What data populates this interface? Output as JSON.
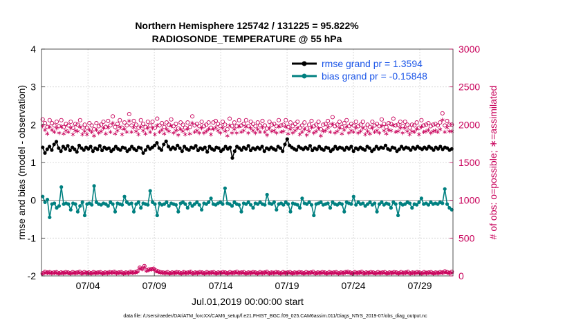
{
  "chart_data": {
    "type": "line",
    "title_line1": "Northern Hemisphere 125742 / 131225 = 95.822%",
    "title_line2": "RADIOSONDE_TEMPERATURE @ 55 hPa",
    "xlabel": "Jul.01,2019 00:00:00 start",
    "ylabel": "rmse and bias (model - observation)",
    "ylabel_right": "# of obs: o=possible; ∗=assimilated",
    "footnote": "data file: /Users/raeder/DAI/ATM_forcXX/CAM6_setup/f.e21.FHIST_BGC.f09_025.CAM6assim.011/Diags_NTrS_2019-07/obs_diag_output.nc",
    "x_range": [
      0,
      31
    ],
    "ylim": [
      -2,
      4
    ],
    "ylim_right": [
      0,
      3000
    ],
    "x_ticks": [
      {
        "value": 3.5,
        "label": "07/04"
      },
      {
        "value": 8.5,
        "label": "07/09"
      },
      {
        "value": 13.5,
        "label": "07/14"
      },
      {
        "value": 18.5,
        "label": "07/19"
      },
      {
        "value": 23.5,
        "label": "07/24"
      },
      {
        "value": 28.5,
        "label": "07/29"
      }
    ],
    "y_ticks": [
      "-2",
      "-1",
      "0",
      "1",
      "2",
      "3",
      "4"
    ],
    "y_ticks_right": [
      "0",
      "500",
      "1000",
      "1500",
      "2000",
      "2500",
      "3000"
    ],
    "legend": [
      {
        "label": "rmse grand pr = 1.3594",
        "color": "#000000"
      },
      {
        "label": "bias grand pr = -0.15848",
        "color": "#008080"
      }
    ],
    "series": [
      {
        "name": "rmse",
        "axis": "left",
        "color": "#000000",
        "values": [
          1.4,
          1.25,
          1.35,
          1.42,
          1.33,
          1.48,
          1.55,
          1.38,
          1.3,
          1.42,
          1.36,
          1.44,
          1.32,
          1.4,
          1.35,
          1.28,
          1.45,
          1.38,
          1.33,
          1.4,
          1.36,
          1.42,
          1.3,
          1.38,
          1.35,
          1.44,
          1.32,
          1.4,
          1.36,
          1.38,
          1.3,
          1.35,
          1.42,
          1.36,
          1.33,
          1.4,
          1.38,
          1.3,
          1.35,
          1.42,
          1.36,
          1.32,
          1.4,
          1.38,
          1.25,
          1.33,
          1.42,
          1.36,
          1.4,
          1.45,
          1.52,
          1.38,
          1.33,
          1.48,
          1.56,
          1.42,
          1.35,
          1.4,
          1.36,
          1.45,
          1.38,
          1.3,
          1.42,
          1.36,
          1.33,
          1.4,
          1.38,
          1.44,
          1.32,
          1.38,
          1.35,
          1.4,
          1.28,
          1.42,
          1.36,
          1.33,
          1.4,
          1.38,
          1.3,
          1.35,
          1.42,
          1.36,
          1.4,
          1.12,
          1.3,
          1.42,
          1.38,
          1.33,
          1.4,
          1.36,
          1.44,
          1.32,
          1.38,
          1.35,
          1.4,
          1.36,
          1.42,
          1.3,
          1.38,
          1.35,
          1.4,
          1.36,
          1.33,
          1.42,
          1.38,
          1.3,
          1.48,
          1.62,
          1.45,
          1.4,
          1.36,
          1.33,
          1.42,
          1.38,
          1.35,
          1.4,
          1.36,
          1.44,
          1.32,
          1.38,
          1.35,
          1.42,
          1.36,
          1.33,
          1.4,
          1.38,
          1.3,
          1.35,
          1.42,
          1.36,
          1.4,
          1.38,
          1.33,
          1.4,
          1.36,
          1.42,
          1.3,
          1.38,
          1.35,
          1.4,
          1.36,
          1.33,
          1.42,
          1.38,
          1.3,
          1.35,
          1.42,
          1.36,
          1.4,
          1.38,
          1.45,
          1.36,
          1.33,
          1.4,
          1.38,
          1.3,
          1.35,
          1.42,
          1.36,
          1.4,
          1.38,
          1.33,
          1.4,
          1.36,
          1.42,
          1.38,
          1.35,
          1.4,
          1.36,
          1.42,
          1.38,
          1.33,
          1.4,
          1.36,
          1.42,
          1.35,
          1.4,
          1.38,
          1.33,
          1.36
        ]
      },
      {
        "name": "bias",
        "axis": "left",
        "color": "#008080",
        "values": [
          0.1,
          -0.05,
          0.02,
          -0.45,
          -0.1,
          -0.08,
          -0.2,
          -0.15,
          0.35,
          -0.1,
          -0.08,
          -0.1,
          -0.25,
          -0.08,
          -0.1,
          -0.3,
          -0.15,
          -0.05,
          -0.4,
          -0.1,
          -0.08,
          -0.12,
          0.38,
          -0.05,
          -0.1,
          -0.12,
          -0.08,
          -0.1,
          -0.15,
          -0.05,
          -0.1,
          -0.3,
          -0.08,
          -0.1,
          -0.12,
          0.1,
          -0.05,
          -0.1,
          -0.08,
          -0.3,
          -0.1,
          -0.05,
          -0.2,
          -0.08,
          -0.1,
          -0.12,
          0.25,
          -0.05,
          -0.1,
          -0.4,
          -0.08,
          -0.12,
          -0.1,
          -0.05,
          -0.15,
          -0.08,
          -0.1,
          -0.12,
          -0.3,
          -0.08,
          -0.05,
          -0.1,
          -0.2,
          -0.08,
          -0.15,
          -0.1,
          -0.05,
          -0.12,
          -0.25,
          -0.08,
          -0.1,
          -0.05,
          0.05,
          -0.1,
          -0.12,
          -0.08,
          -0.05,
          -0.1,
          0.32,
          -0.08,
          -0.1,
          -0.15,
          -0.05,
          -0.1,
          -0.12,
          -0.3,
          -0.08,
          -0.1,
          -0.05,
          -0.12,
          -0.2,
          -0.08,
          -0.1,
          -0.05,
          -0.1,
          -0.12,
          0.15,
          -0.08,
          -0.1,
          -0.05,
          -0.25,
          -0.1,
          -0.08,
          -0.12,
          -0.05,
          -0.1,
          -0.3,
          -0.08,
          -0.1,
          -0.12,
          -0.2,
          0.05,
          -0.08,
          -0.1,
          -0.05,
          -0.12,
          -0.4,
          -0.1,
          -0.08,
          -0.05,
          -0.12,
          -0.1,
          -0.08,
          -0.2,
          -0.05,
          -0.1,
          -0.12,
          -0.08,
          -0.1,
          -0.3,
          -0.05,
          -0.08,
          -0.1,
          0.1,
          -0.12,
          -0.05,
          -0.1,
          -0.08,
          -0.15,
          -0.1,
          -0.05,
          -0.12,
          -0.08,
          -0.3,
          -0.1,
          -0.05,
          -0.12,
          -0.08,
          -0.1,
          -0.2,
          -0.05,
          -0.1,
          -0.4,
          -0.08,
          -0.12,
          -0.1,
          -0.05,
          -0.08,
          -0.2,
          -0.1,
          -0.12,
          -0.05,
          0.05,
          -0.1,
          -0.08,
          -0.12,
          -0.05,
          -0.1,
          -0.08,
          -0.1,
          -0.05,
          -0.08,
          0.3,
          -0.1,
          -0.2,
          -0.25
        ]
      },
      {
        "name": "possible",
        "axis": "right",
        "color": "#c8005a",
        "marker": "circle",
        "values": [
          2070,
          2020,
          1970,
          2060,
          2020,
          1990,
          2040,
          1980,
          2060,
          1970,
          2010,
          1990,
          2040,
          1960,
          2010,
          2000,
          2060,
          1960,
          2000,
          1960,
          2020,
          1990,
          1940,
          2020,
          1980,
          2000,
          2040,
          1970,
          2050,
          1990,
          2110,
          1970,
          2010,
          2060,
          1960,
          2030,
          1990,
          2140,
          1990,
          2050,
          2000,
          1960,
          2060,
          2010,
          1970,
          2040,
          1990,
          2040,
          1960,
          2080,
          1990,
          2020,
          1970,
          2030,
          2000,
          2070,
          1980,
          2010,
          1950,
          2030,
          2000,
          1960,
          2030,
          1970,
          2110,
          1990,
          2010,
          1980,
          2040,
          1980,
          2000,
          2030,
          1960,
          2030,
          2050,
          2010,
          1980,
          2040,
          2000,
          1940,
          2080,
          1980,
          2030,
          1980,
          2060,
          1990,
          2010,
          2060,
          1980,
          2040,
          2010,
          1980,
          2030,
          1990,
          2050,
          1990,
          1950,
          2040,
          2000,
          2010,
          1980,
          2060,
          1990,
          2000,
          2060,
          1970,
          2030,
          1980,
          2010,
          2040,
          1960,
          1990,
          2030,
          1950,
          2000,
          2050,
          1980,
          2000,
          2040,
          1940,
          2000,
          2010,
          2050,
          1990,
          2100,
          1980,
          2000,
          2040,
          1970,
          2020,
          2060,
          1980,
          2010,
          1990,
          2040,
          1980,
          2000,
          2040,
          1960,
          2000,
          1970,
          2040,
          1990,
          2010,
          1980,
          2070,
          2010,
          1970,
          2020,
          2010,
          2080,
          1990,
          2000,
          2040,
          1980,
          2040,
          2000,
          1960,
          2000,
          1990,
          2030,
          1960,
          2060,
          1990,
          2000,
          2020,
          1980,
          2000,
          2010,
          1990,
          2030,
          2150,
          1990,
          2050,
          2000,
          2000
        ]
      },
      {
        "name": "assimilated",
        "axis": "right",
        "color": "#c8005a",
        "marker": "star",
        "values": [
          1990,
          1940,
          1890,
          1980,
          1940,
          1910,
          1960,
          1900,
          1980,
          1890,
          1930,
          1910,
          1960,
          1880,
          1930,
          1920,
          1980,
          1880,
          1920,
          1880,
          1940,
          1910,
          1860,
          1940,
          1900,
          1920,
          1960,
          1890,
          1970,
          1910,
          2030,
          1890,
          1930,
          1980,
          1880,
          1950,
          1910,
          2060,
          1910,
          1970,
          1920,
          1880,
          1980,
          1930,
          1890,
          1960,
          1910,
          1960,
          1880,
          2000,
          1910,
          1940,
          1890,
          1950,
          1920,
          1990,
          1900,
          1930,
          1870,
          1950,
          1920,
          1880,
          1950,
          1890,
          2030,
          1910,
          1930,
          1900,
          1960,
          1900,
          1920,
          1950,
          1880,
          1950,
          1970,
          1930,
          1900,
          1960,
          1920,
          1860,
          2000,
          1900,
          1950,
          1900,
          1980,
          1910,
          1930,
          1980,
          1900,
          1960,
          1930,
          1900,
          1950,
          1910,
          1970,
          1910,
          1870,
          1960,
          1920,
          1930,
          1900,
          1980,
          1910,
          1920,
          1980,
          1890,
          1950,
          1900,
          1930,
          1960,
          1880,
          1910,
          1950,
          1870,
          1920,
          1970,
          1900,
          1920,
          1960,
          1860,
          1920,
          1930,
          1970,
          1910,
          2020,
          1900,
          1920,
          1960,
          1890,
          1940,
          1980,
          1900,
          1930,
          1910,
          1960,
          1900,
          1920,
          1960,
          1880,
          1920,
          1890,
          1960,
          1910,
          1930,
          1900,
          1990,
          1930,
          1890,
          1940,
          1930,
          2000,
          1910,
          1920,
          1960,
          1900,
          1960,
          1920,
          1880,
          1920,
          1910,
          1950,
          1880,
          1980,
          1910,
          1920,
          1940,
          1900,
          1920,
          1930,
          1910,
          1950,
          2070,
          1910,
          1970,
          1920,
          1920
        ]
      },
      {
        "name": "possible_low",
        "axis": "right",
        "color": "#c8005a",
        "marker": "circle",
        "values": [
          35,
          55,
          45,
          50,
          40,
          45,
          50,
          35,
          45,
          40,
          50,
          45,
          35,
          50,
          40,
          45,
          55,
          35,
          50,
          40,
          45,
          35,
          50,
          40,
          45,
          50,
          35,
          45,
          40,
          50,
          45,
          55,
          40,
          45,
          50,
          35,
          45,
          40,
          55,
          45,
          50,
          60,
          110,
          95,
          130,
          75,
          85,
          90,
          95,
          70,
          60,
          50,
          45,
          40,
          50,
          35,
          45,
          40,
          50,
          45,
          35,
          50,
          40,
          45,
          55,
          35,
          45,
          40,
          50,
          45,
          35,
          50,
          40,
          45,
          50,
          35,
          45,
          40,
          50,
          45,
          35,
          50,
          40,
          45,
          55,
          40,
          45,
          50,
          35,
          45,
          40,
          50,
          45,
          35,
          50,
          40,
          45,
          55,
          35,
          45,
          40,
          50,
          45,
          35,
          50,
          40,
          45,
          50,
          35,
          45,
          40,
          50,
          45,
          35,
          50,
          40,
          45,
          55,
          35,
          45,
          40,
          50,
          45,
          35,
          50,
          40,
          45,
          50,
          35,
          45,
          40,
          50,
          55,
          45,
          35,
          50,
          40,
          45,
          55,
          35,
          45,
          40,
          50,
          45,
          35,
          50,
          40,
          45,
          50,
          35,
          45,
          40,
          50,
          45,
          35,
          50,
          40,
          45,
          55,
          35,
          45,
          40,
          50,
          45,
          35,
          50,
          40,
          45,
          50,
          35,
          45,
          40,
          50,
          45,
          60,
          50,
          40,
          55
        ]
      },
      {
        "name": "assimilated_low",
        "axis": "right",
        "color": "#c8005a",
        "marker": "star",
        "values": [
          35,
          55,
          45,
          50,
          40,
          45,
          50,
          35,
          45,
          40,
          50,
          45,
          35,
          50,
          40,
          45,
          55,
          35,
          50,
          40,
          45,
          35,
          50,
          40,
          45,
          50,
          35,
          45,
          40,
          50,
          45,
          55,
          40,
          45,
          50,
          35,
          45,
          40,
          55,
          45,
          50,
          60,
          110,
          95,
          130,
          75,
          85,
          90,
          95,
          70,
          60,
          50,
          45,
          40,
          50,
          35,
          45,
          40,
          50,
          45,
          35,
          50,
          40,
          45,
          55,
          35,
          45,
          40,
          50,
          45,
          35,
          50,
          40,
          45,
          50,
          35,
          45,
          40,
          50,
          45,
          35,
          50,
          40,
          45,
          55,
          40,
          45,
          50,
          35,
          45,
          40,
          50,
          45,
          35,
          50,
          40,
          45,
          55,
          35,
          45,
          40,
          50,
          45,
          35,
          50,
          40,
          45,
          50,
          35,
          45,
          40,
          50,
          45,
          35,
          50,
          40,
          45,
          55,
          35,
          45,
          40,
          50,
          45,
          35,
          50,
          40,
          45,
          50,
          35,
          45,
          40,
          50,
          55,
          45,
          35,
          50,
          40,
          45,
          55,
          35,
          45,
          40,
          50,
          45,
          35,
          50,
          40,
          45,
          50,
          35,
          45,
          40,
          50,
          45,
          35,
          50,
          40,
          45,
          55,
          35,
          45,
          40,
          50,
          45,
          35,
          50,
          40,
          45,
          50,
          35,
          45,
          40,
          50,
          45,
          60,
          50,
          40,
          55
        ]
      }
    ]
  }
}
